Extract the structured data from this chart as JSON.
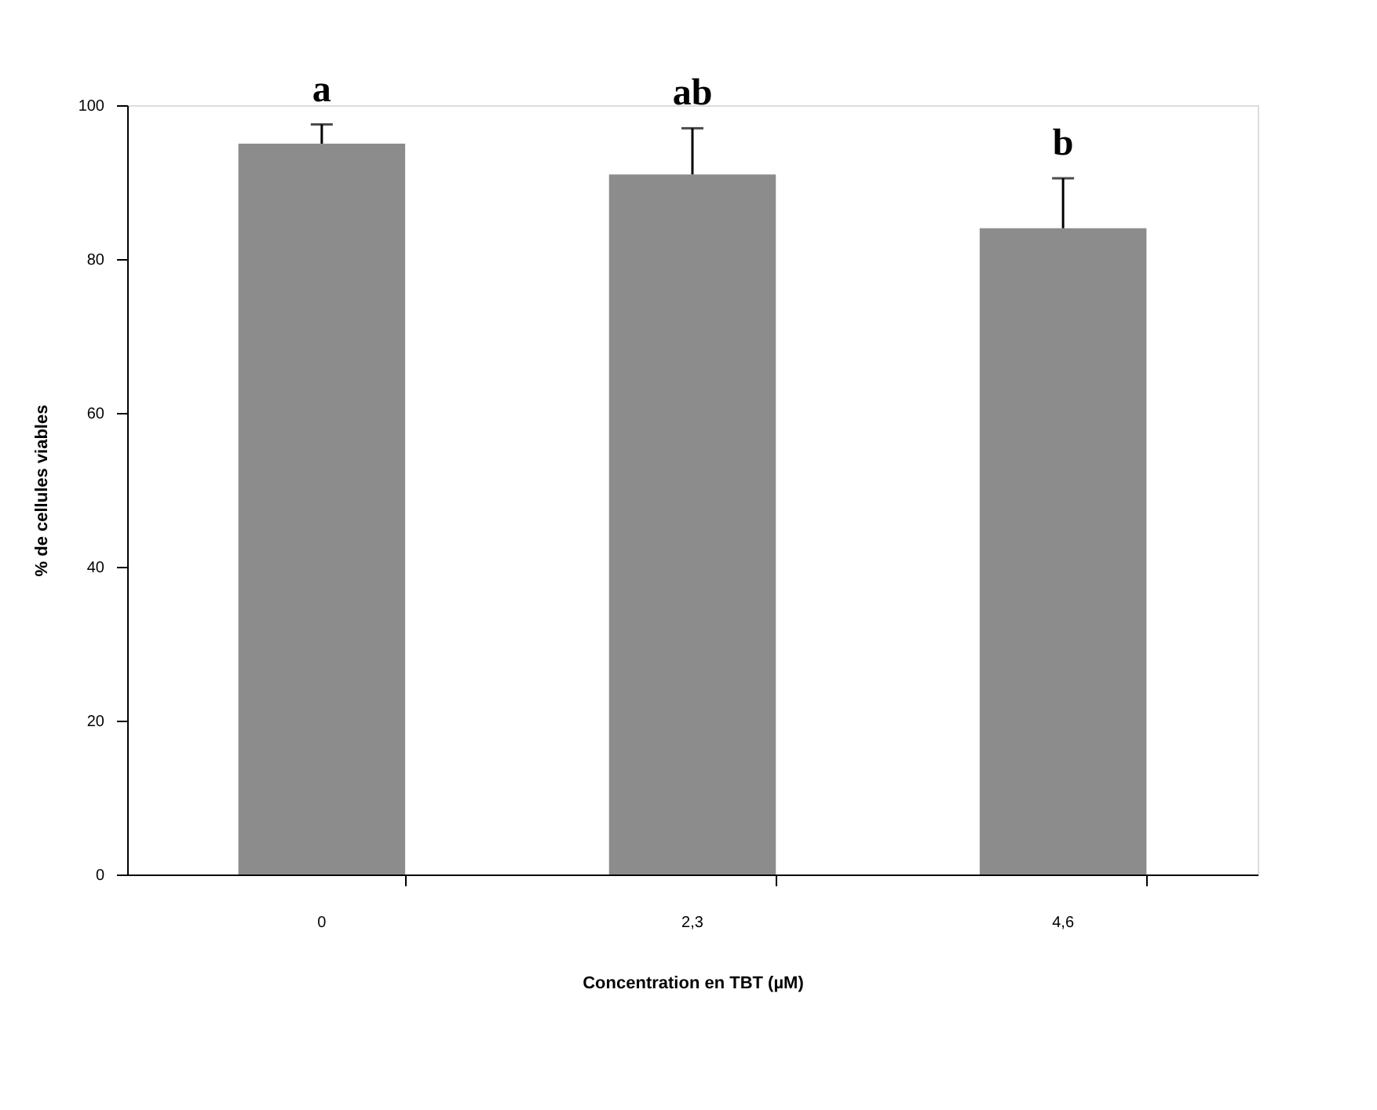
{
  "chart_data": {
    "type": "bar",
    "xlabel": "Concentration en TBT (µM)",
    "ylabel": "% de cellules viables",
    "categories": [
      "0",
      "2,3",
      "4,6"
    ],
    "values": [
      95,
      91,
      84
    ],
    "errors": [
      [
        95,
        97.5
      ],
      [
        91,
        97
      ],
      [
        84,
        90.5
      ]
    ],
    "color": "#8c8c8c",
    "ylim": [
      0,
      100
    ],
    "yticks": [
      0,
      20,
      40,
      60,
      80,
      100
    ],
    "grid": false,
    "annotations": [
      {
        "text": "a",
        "x": "0",
        "y": 97.5
      },
      {
        "text": "ab",
        "x": "2,3",
        "y": 97
      },
      {
        "text": "b",
        "x": "4,6",
        "y": 90.5
      }
    ]
  }
}
